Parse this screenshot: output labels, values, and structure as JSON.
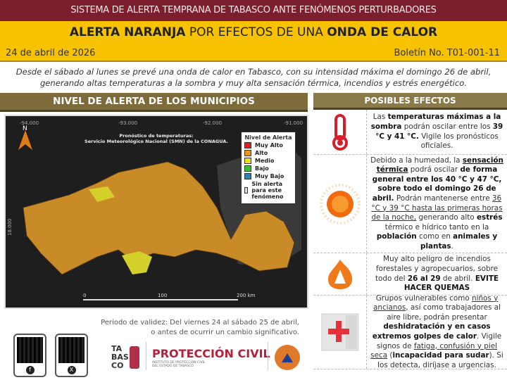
{
  "header": {
    "system": "SISTEMA DE ALERTA TEMPRANA DE TABASCO ANTE FENÓMENOS PERTURBADORES",
    "title_bold1": "ALERTA NARANJA",
    "title_mid": " POR EFECTOS DE UNA ",
    "title_bold2": "ONDA DE CALOR",
    "date": "24 de abril de 2026",
    "bulletin": "Boletín No. T01-001-11"
  },
  "intro": "Desde el sábado al lunes se prevé una onda de calor en Tabasco, con su intensidad máxima el domingo 26 de abril, generando altas temperaturas a la sombra y muy alta sensación térmica, incendios y estrés energético.",
  "map": {
    "heading": "NIVEL DE ALERTA DE LOS MUNICIPIOS",
    "source_line1": "Pronóstico de temperaturas:",
    "source_line2": "Servicio Meteorológico Nacional (SMN) de la CONAGUA.",
    "north": "N",
    "coords_top": [
      "-94.000",
      "-93.000",
      "-92.000",
      "-91.000"
    ],
    "coord_left": "18.000",
    "scale": [
      "0",
      "100",
      "200 km"
    ],
    "legend_title": "Nivel de Alerta",
    "legend": [
      {
        "label": "Muy Alto",
        "color": "#e02020"
      },
      {
        "label": "Alto",
        "color": "#e8961e"
      },
      {
        "label": "Medio",
        "color": "#e8e020"
      },
      {
        "label": "Bajo",
        "color": "#3cc03c"
      },
      {
        "label": "Muy Bajo",
        "color": "#2a7fc0"
      },
      {
        "label": "Sin alerta para este fenómeno",
        "color": "#dddddd"
      }
    ],
    "colors": {
      "alto": "#c98a28",
      "medio": "#d4d02a",
      "none": "#3a3a3a"
    }
  },
  "effects": {
    "heading": "POSIBLES EFECTOS",
    "items": [
      {
        "icon": "thermometer-icon",
        "parts": [
          [
            "Las ",
            ""
          ],
          [
            "temperaturas máximas a la sombra",
            "b"
          ],
          [
            " podrán oscilar entre los ",
            ""
          ],
          [
            "39 °C y 41 °C.",
            "b"
          ],
          [
            " Vigile los pronósticos oficiales.",
            ""
          ]
        ]
      },
      {
        "icon": "sun-icon",
        "parts": [
          [
            "Debido a la humedad, la ",
            ""
          ],
          [
            "sensación térmica",
            "bu"
          ],
          [
            " podrá oscilar ",
            ""
          ],
          [
            "de forma general entre los 40 °C y 47 °C, sobre todo el domingo 26 de abril.",
            "b"
          ],
          [
            " Podrán mantenerse entre ",
            ""
          ],
          [
            "36 °C y 39 °C hasta las primeras horas de la noche,",
            "u"
          ],
          [
            " generando alto ",
            ""
          ],
          [
            "estrés",
            "b"
          ],
          [
            " térmico e hídrico tanto en la ",
            ""
          ],
          [
            "población",
            "b"
          ],
          [
            " como en ",
            ""
          ],
          [
            "animales y plantas",
            "b"
          ],
          [
            ".",
            ""
          ]
        ]
      },
      {
        "icon": "fire-icon",
        "parts": [
          [
            "Muy alto peligro de incendios forestales y agropecuarios, sobre todo del ",
            ""
          ],
          [
            "26 al 29",
            "b"
          ],
          [
            " de abril. ",
            ""
          ],
          [
            "EVITE HACER QUEMAS",
            "b"
          ]
        ]
      },
      {
        "icon": "first-aid-icon",
        "parts": [
          [
            "Grupos vulnerables como ",
            ""
          ],
          [
            "niños y ancianos",
            "u"
          ],
          [
            ", así como trabajadores al aire libre, podrán presentar ",
            ""
          ],
          [
            "deshidratación y en casos extremos golpes de calor",
            "b"
          ],
          [
            ". Vigile signos de ",
            ""
          ],
          [
            "fatiga, confusión y piel seca",
            "u"
          ],
          [
            " (",
            ""
          ],
          [
            "incapacidad para sudar",
            "b"
          ],
          [
            "). Si los detecta, diríjase a urgencias.",
            ""
          ]
        ]
      }
    ]
  },
  "footer": {
    "validity1": "Periodo de validez: Del viernes 24 al sábado 25 de abril,",
    "validity2": "o antes de ocurrir un cambio significativo.",
    "tabasco_logo": "TABASCO",
    "pc_title": "PROTECCIÓN CIVIL",
    "pc_sub1": "INSTITUTO DE PROTECCIÓN CIVIL",
    "pc_sub2": "DEL ESTADO DE TABASCO",
    "social": [
      "facebook",
      "x"
    ]
  }
}
